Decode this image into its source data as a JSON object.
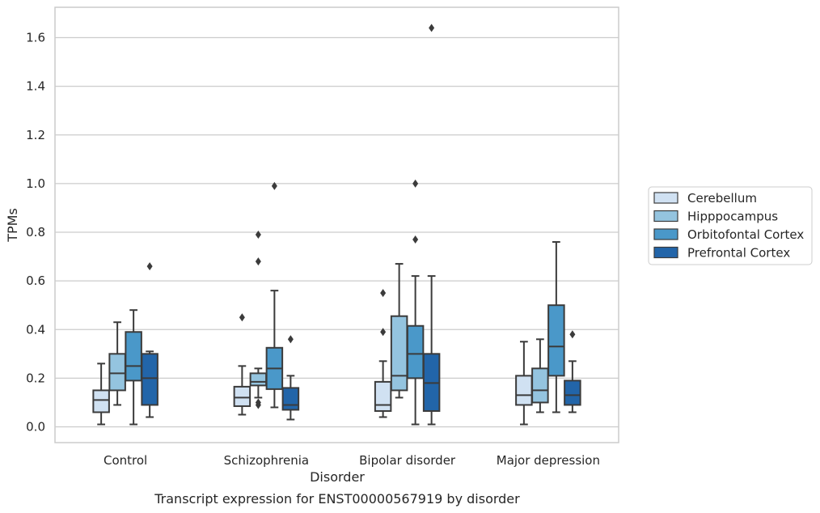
{
  "chart_data": {
    "type": "box",
    "caption": "Transcript expression for ENST00000567919 by disorder",
    "xlabel": "Disorder",
    "ylabel": "TPMs",
    "ylim": [
      -0.065,
      1.73
    ],
    "yticks": [
      "0.0",
      "0.2",
      "0.4",
      "0.6",
      "0.8",
      "1.0",
      "1.2",
      "1.4",
      "1.6"
    ],
    "grid": "horizontal",
    "legend_position": "right",
    "categories": [
      "Control",
      "Schizophrenia",
      "Bipolar disorder",
      "Major depression"
    ],
    "series": [
      {
        "name": "Cerebellum",
        "color": "#d0e1f2",
        "boxes": [
          {
            "whisker_low": 0.01,
            "q1": 0.06,
            "median": 0.11,
            "q3": 0.15,
            "whisker_high": 0.26,
            "outliers": []
          },
          {
            "whisker_low": 0.05,
            "q1": 0.085,
            "median": 0.12,
            "q3": 0.165,
            "whisker_high": 0.25,
            "outliers": [
              0.45
            ]
          },
          {
            "whisker_low": 0.04,
            "q1": 0.065,
            "median": 0.09,
            "q3": 0.185,
            "whisker_high": 0.27,
            "outliers": [
              0.39,
              0.55
            ]
          },
          {
            "whisker_low": 0.01,
            "q1": 0.09,
            "median": 0.13,
            "q3": 0.21,
            "whisker_high": 0.35,
            "outliers": []
          }
        ]
      },
      {
        "name": "Hipppocampus",
        "color": "#94c4df",
        "boxes": [
          {
            "whisker_low": 0.09,
            "q1": 0.15,
            "median": 0.22,
            "q3": 0.3,
            "whisker_high": 0.43,
            "outliers": []
          },
          {
            "whisker_low": 0.12,
            "q1": 0.17,
            "median": 0.185,
            "q3": 0.22,
            "whisker_high": 0.24,
            "outliers": [
              0.09,
              0.1,
              0.68,
              0.79
            ]
          },
          {
            "whisker_low": 0.12,
            "q1": 0.15,
            "median": 0.21,
            "q3": 0.455,
            "whisker_high": 0.67,
            "outliers": []
          },
          {
            "whisker_low": 0.06,
            "q1": 0.1,
            "median": 0.15,
            "q3": 0.24,
            "whisker_high": 0.36,
            "outliers": []
          }
        ]
      },
      {
        "name": "Orbitofontal Cortex",
        "color": "#4a98c9",
        "boxes": [
          {
            "whisker_low": 0.01,
            "q1": 0.19,
            "median": 0.25,
            "q3": 0.39,
            "whisker_high": 0.48,
            "outliers": []
          },
          {
            "whisker_low": 0.08,
            "q1": 0.155,
            "median": 0.24,
            "q3": 0.325,
            "whisker_high": 0.56,
            "outliers": [
              0.99
            ]
          },
          {
            "whisker_low": 0.01,
            "q1": 0.2,
            "median": 0.3,
            "q3": 0.415,
            "whisker_high": 0.62,
            "outliers": [
              0.77,
              1.0
            ]
          },
          {
            "whisker_low": 0.06,
            "q1": 0.21,
            "median": 0.33,
            "q3": 0.5,
            "whisker_high": 0.76,
            "outliers": []
          }
        ]
      },
      {
        "name": "Prefrontal Cortex",
        "color": "#2265a9",
        "boxes": [
          {
            "whisker_low": 0.04,
            "q1": 0.09,
            "median": 0.2,
            "q3": 0.3,
            "whisker_high": 0.31,
            "outliers": [
              0.66
            ]
          },
          {
            "whisker_low": 0.03,
            "q1": 0.07,
            "median": 0.09,
            "q3": 0.16,
            "whisker_high": 0.21,
            "outliers": [
              0.36
            ]
          },
          {
            "whisker_low": 0.01,
            "q1": 0.065,
            "median": 0.18,
            "q3": 0.3,
            "whisker_high": 0.62,
            "outliers": [
              1.64
            ]
          },
          {
            "whisker_low": 0.06,
            "q1": 0.09,
            "median": 0.13,
            "q3": 0.19,
            "whisker_high": 0.27,
            "outliers": [
              0.38
            ]
          }
        ]
      }
    ]
  }
}
